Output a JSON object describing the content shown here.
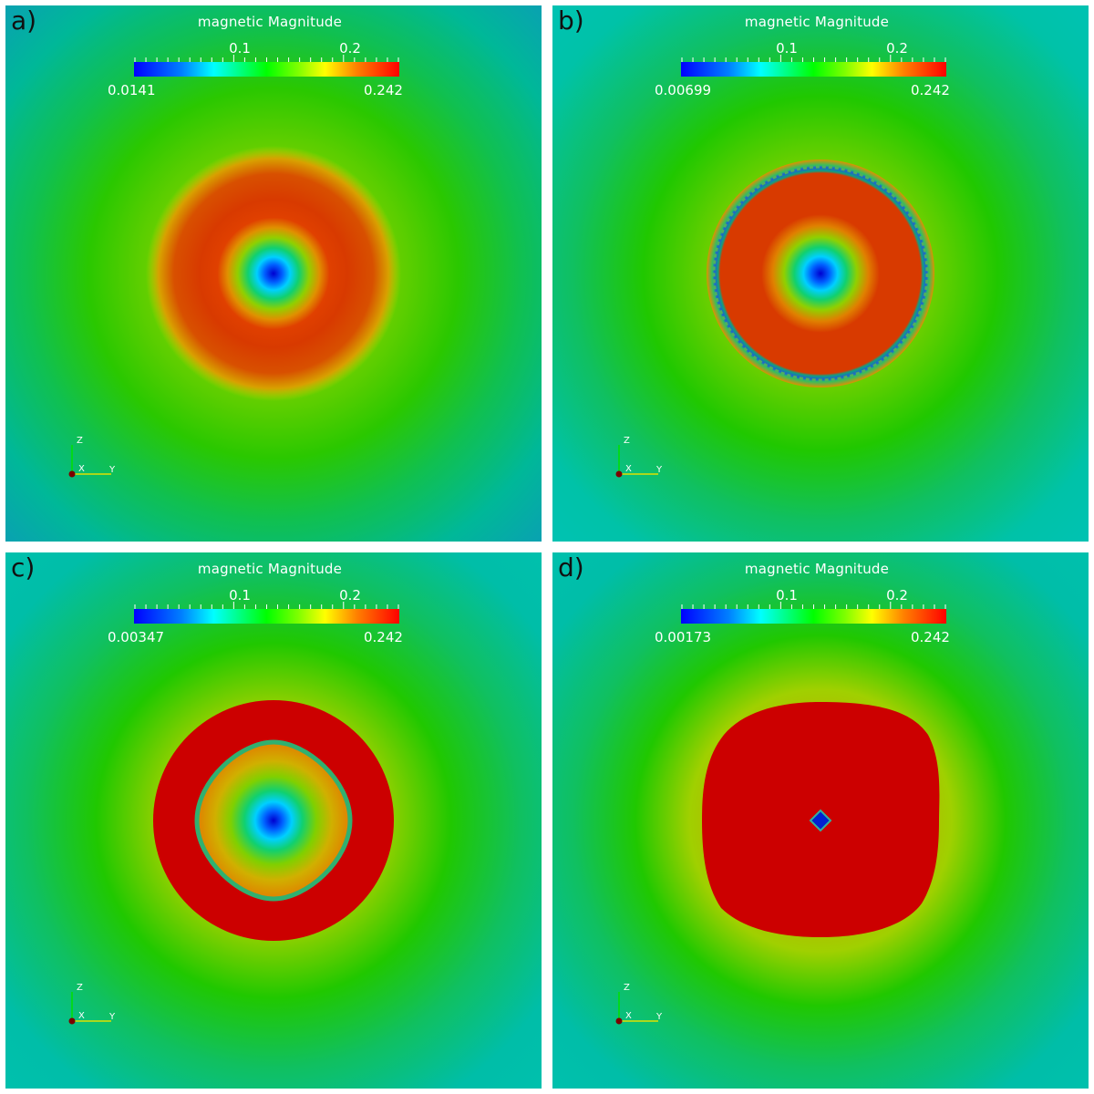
{
  "panels": [
    {
      "letter": "a)",
      "colorbar": {
        "title": "magnetic Magnitude",
        "min_label": "0.0141",
        "max_label": "0.242",
        "tick_labels": [
          "0.1",
          "0.2"
        ]
      },
      "axes": {
        "x": "X",
        "y": "Y",
        "z": "Z"
      },
      "colors": {
        "outer": "#0a9fb4"
      }
    },
    {
      "letter": "b)",
      "colorbar": {
        "title": "magnetic Magnitude",
        "min_label": "0.00699",
        "max_label": "0.242",
        "tick_labels": [
          "0.1",
          "0.2"
        ]
      },
      "axes": {
        "x": "X",
        "y": "Y",
        "z": "Z"
      },
      "colors": {
        "outer": "#00c2b4"
      }
    },
    {
      "letter": "c)",
      "colorbar": {
        "title": "magnetic Magnitude",
        "min_label": "0.00347",
        "max_label": "0.242",
        "tick_labels": [
          "0.1",
          "0.2"
        ]
      },
      "axes": {
        "x": "X",
        "y": "Y",
        "z": "Z"
      },
      "colors": {
        "outer": "#00c0ae"
      }
    },
    {
      "letter": "d)",
      "colorbar": {
        "title": "magnetic Magnitude",
        "min_label": "0.00173",
        "max_label": "0.242",
        "tick_labels": [
          "0.1",
          "0.2"
        ]
      },
      "axes": {
        "x": "X",
        "y": "Y",
        "z": "Z"
      },
      "colors": {
        "outer": "#00c0ae"
      }
    }
  ]
}
